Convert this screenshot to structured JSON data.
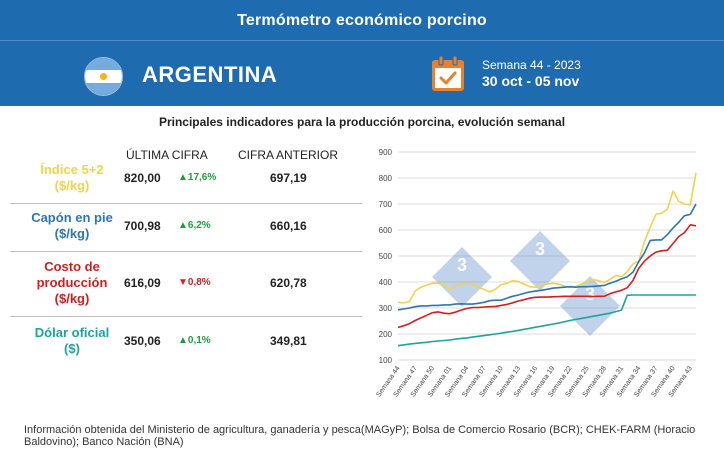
{
  "header": {
    "title": "Termómetro económico porcino",
    "country": "ARGENTINA",
    "week_label": "Semana 44 - 2023",
    "date_range": "30 oct - 05 nov",
    "colors": {
      "background": "#1f6bb0",
      "calendar": "#e8812c"
    }
  },
  "subtitle": "Principales indicadores para la producción porcina, evolución semanal",
  "table": {
    "col_last": "ÚLTIMA CIFRA",
    "col_prev": "CIFRA ANTERIOR",
    "rows": [
      {
        "name_line1": "Índice 5+2",
        "name_line2": "($/kg)",
        "name_line3": "",
        "value": "820,00",
        "change": "▲17,6%",
        "direction": "up",
        "previous": "697,19",
        "color": "#f2d24e"
      },
      {
        "name_line1": "Capón en pie",
        "name_line2": "($/kg)",
        "name_line3": "",
        "value": "700,98",
        "change": "▲6,2%",
        "direction": "up",
        "previous": "660,16",
        "color": "#2e75b6"
      },
      {
        "name_line1": "Costo de",
        "name_line2": "producción",
        "name_line3": "($/kg)",
        "value": "616,09",
        "change": "▼0,8%",
        "direction": "down",
        "previous": "620,78",
        "color": "#d21e1e"
      },
      {
        "name_line1": "Dólar oficial",
        "name_line2": "($)",
        "name_line3": "",
        "value": "350,06",
        "change": "▲0,1%",
        "direction": "up",
        "previous": "349,81",
        "color": "#1ea3a0"
      }
    ]
  },
  "chart_data": {
    "type": "line",
    "ylim": [
      100,
      900
    ],
    "yticks": [
      100,
      200,
      300,
      400,
      500,
      600,
      700,
      800,
      900
    ],
    "grid": true,
    "legend": "none",
    "xlabels": [
      "Semana 44",
      "Semana 47",
      "Semana 50",
      "Semana 01",
      "Semana 04",
      "Semana 07",
      "Semana 10",
      "Semana 13",
      "Semana 16",
      "Semana 19",
      "Semana 22",
      "Semana 25",
      "Semana 28",
      "Semana 31",
      "Semana 34",
      "Semana 37",
      "Semana 40",
      "Semana 43"
    ],
    "x": [
      44,
      45,
      46,
      47,
      48,
      49,
      50,
      51,
      52,
      1,
      2,
      3,
      4,
      5,
      6,
      7,
      8,
      9,
      10,
      11,
      12,
      13,
      14,
      15,
      16,
      17,
      18,
      19,
      20,
      21,
      22,
      23,
      24,
      25,
      26,
      27,
      28,
      29,
      30,
      31,
      32,
      33,
      34,
      35,
      36,
      37,
      38,
      39,
      40,
      41,
      42,
      43,
      44
    ],
    "series": [
      {
        "color": "#f2d24e",
        "values": [
          322,
          320,
          325,
          365,
          380,
          388,
          395,
          395,
          390,
          370,
          385,
          392,
          395,
          392,
          380,
          372,
          362,
          372,
          390,
          395,
          405,
          402,
          392,
          382,
          380,
          385,
          392,
          395,
          392,
          385,
          380,
          382,
          392,
          400,
          410,
          405,
          398,
          410,
          425,
          420,
          440,
          470,
          480,
          555,
          610,
          660,
          665,
          680,
          750,
          710,
          700,
          697,
          820
        ]
      },
      {
        "color": "#2e75b6",
        "values": [
          293,
          296,
          300,
          305,
          308,
          308,
          310,
          310,
          312,
          312,
          315,
          316,
          315,
          315,
          318,
          322,
          328,
          330,
          330,
          338,
          345,
          350,
          356,
          362,
          365,
          368,
          372,
          376,
          378,
          380,
          382,
          380,
          382,
          382,
          383,
          385,
          387,
          395,
          403,
          412,
          420,
          438,
          478,
          512,
          560,
          562,
          562,
          582,
          608,
          630,
          655,
          660,
          700
        ]
      },
      {
        "color": "#d21e1e",
        "values": [
          225,
          232,
          240,
          252,
          262,
          272,
          282,
          285,
          280,
          278,
          284,
          292,
          298,
          302,
          302,
          304,
          305,
          306,
          310,
          314,
          320,
          327,
          332,
          338,
          341,
          342,
          342,
          343,
          344,
          345,
          345,
          345,
          345,
          345,
          344,
          345,
          345,
          355,
          362,
          368,
          378,
          406,
          452,
          480,
          500,
          515,
          520,
          522,
          548,
          575,
          590,
          620,
          616
        ]
      },
      {
        "color": "#1ea3a0",
        "values": [
          155,
          158,
          161,
          164,
          166,
          168,
          171,
          173,
          175,
          177,
          180,
          183,
          185,
          188,
          191,
          194,
          197,
          200,
          203,
          207,
          210,
          214,
          218,
          222,
          226,
          230,
          234,
          238,
          242,
          247,
          252,
          256,
          260,
          264,
          268,
          272,
          276,
          280,
          286,
          292,
          349,
          350,
          350,
          350,
          350,
          350,
          350,
          350,
          350,
          350,
          350,
          350,
          350
        ]
      }
    ]
  },
  "watermark": [
    "3",
    "3",
    "3"
  ],
  "footer": {
    "line1": "Información obtenida del Ministerio de agricultura, ganadería y pesca(MAGyP); Bolsa de Comercio Rosario (BCR); CHEK-FARM (Horacio",
    "line2": "Baldovino); Banco Nación (BNA)"
  }
}
